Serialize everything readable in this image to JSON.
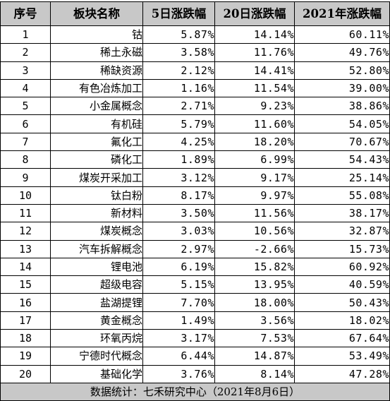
{
  "columns": [
    "序号",
    "板块名称",
    "5日涨跌幅",
    "20日涨跌幅",
    "2021年涨跌幅"
  ],
  "rows": [
    {
      "idx": "1",
      "name": "钴",
      "d5": "5.87%",
      "d20": "14.14%",
      "ytd": "60.11%"
    },
    {
      "idx": "2",
      "name": "稀土永磁",
      "d5": "3.58%",
      "d20": "11.76%",
      "ytd": "49.76%"
    },
    {
      "idx": "3",
      "name": "稀缺资源",
      "d5": "2.12%",
      "d20": "14.41%",
      "ytd": "52.80%"
    },
    {
      "idx": "4",
      "name": "有色冶炼加工",
      "d5": "1.16%",
      "d20": "11.54%",
      "ytd": "39.00%"
    },
    {
      "idx": "5",
      "name": "小金属概念",
      "d5": "2.71%",
      "d20": "9.23%",
      "ytd": "38.86%"
    },
    {
      "idx": "6",
      "name": "有机硅",
      "d5": "5.79%",
      "d20": "11.60%",
      "ytd": "54.05%"
    },
    {
      "idx": "7",
      "name": "氟化工",
      "d5": "4.25%",
      "d20": "18.20%",
      "ytd": "70.67%"
    },
    {
      "idx": "8",
      "name": "磷化工",
      "d5": "1.89%",
      "d20": "6.99%",
      "ytd": "54.43%"
    },
    {
      "idx": "9",
      "name": "煤炭开采加工",
      "d5": "3.12%",
      "d20": "9.17%",
      "ytd": "25.14%"
    },
    {
      "idx": "10",
      "name": "钛白粉",
      "d5": "8.17%",
      "d20": "9.97%",
      "ytd": "55.08%"
    },
    {
      "idx": "11",
      "name": "新材料",
      "d5": "3.50%",
      "d20": "11.56%",
      "ytd": "38.17%"
    },
    {
      "idx": "12",
      "name": "煤炭概念",
      "d5": "3.03%",
      "d20": "10.56%",
      "ytd": "32.87%"
    },
    {
      "idx": "13",
      "name": "汽车拆解概念",
      "d5": "2.97%",
      "d20": "-2.66%",
      "ytd": "15.73%"
    },
    {
      "idx": "14",
      "name": "锂电池",
      "d5": "6.19%",
      "d20": "15.82%",
      "ytd": "60.92%"
    },
    {
      "idx": "15",
      "name": "超级电容",
      "d5": "5.15%",
      "d20": "13.95%",
      "ytd": "40.59%"
    },
    {
      "idx": "16",
      "name": "盐湖提锂",
      "d5": "7.70%",
      "d20": "18.00%",
      "ytd": "50.43%"
    },
    {
      "idx": "17",
      "name": "黄金概念",
      "d5": "1.49%",
      "d20": "3.56%",
      "ytd": "18.02%"
    },
    {
      "idx": "18",
      "name": "环氧丙烷",
      "d5": "3.17%",
      "d20": "7.53%",
      "ytd": "67.64%"
    },
    {
      "idx": "19",
      "name": "宁德时代概念",
      "d5": "6.44%",
      "d20": "14.87%",
      "ytd": "53.49%"
    },
    {
      "idx": "20",
      "name": "基础化学",
      "d5": "3.76%",
      "d20": "8.14%",
      "ytd": "47.28%"
    }
  ],
  "footer": "数据统计：七禾研究中心（2021年8月6日）",
  "colors": {
    "header_bg": "#c8c8c8",
    "border": "#000000"
  }
}
